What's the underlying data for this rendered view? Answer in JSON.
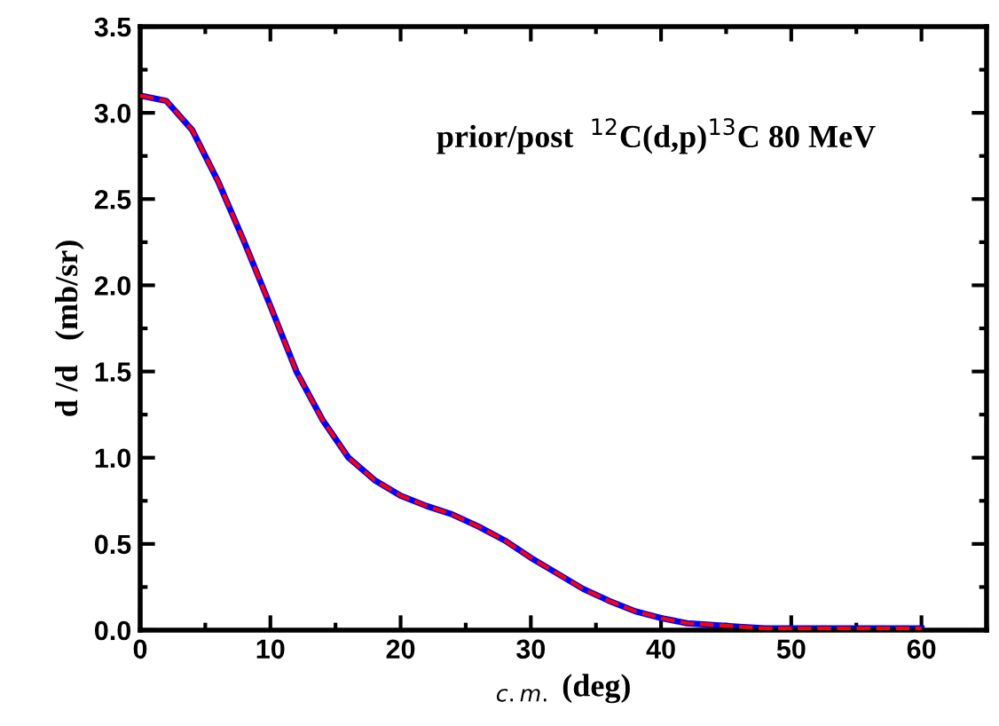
{
  "chart_data": {
    "type": "line",
    "xlabel": "$_{c.m.}$ (deg)",
    "ylabel": "d /d   (mb/sr)",
    "annotations": [
      "prior/post  $^{12}$C(d,p)$^{13}$C 80 MeV"
    ],
    "xlim": [
      0,
      65
    ],
    "ylim": [
      0,
      3.5
    ],
    "xticks": [
      0,
      10,
      20,
      30,
      40,
      50,
      60
    ],
    "yticks": [
      {
        "value": 0,
        "label": "0.0"
      },
      0.5,
      {
        "value": 1,
        "label": "1.0"
      },
      1.5,
      {
        "value": 2,
        "label": "2.0"
      },
      2.5,
      {
        "value": 3,
        "label": "3.0"
      },
      3.5
    ],
    "grid": false,
    "legend": false,
    "x": [
      0,
      2,
      4,
      6,
      8,
      10,
      12,
      14,
      16,
      18,
      20,
      22,
      24,
      26,
      28,
      30,
      32,
      34,
      36,
      38,
      40,
      42,
      44,
      46,
      48,
      50,
      55,
      60
    ],
    "series": [
      {
        "color": "#ff0000",
        "line_style": "dashed",
        "values": [
          3.1,
          3.07,
          2.9,
          2.6,
          2.25,
          1.88,
          1.5,
          1.22,
          1.0,
          0.87,
          0.78,
          0.72,
          0.67,
          0.6,
          0.52,
          0.42,
          0.33,
          0.24,
          0.17,
          0.11,
          0.07,
          0.04,
          0.03,
          0.02,
          0.01,
          0.01,
          0.01,
          0.01
        ]
      },
      {
        "color": "#0000ff",
        "line_style": "solid",
        "values": [
          3.1,
          3.07,
          2.9,
          2.6,
          2.25,
          1.88,
          1.5,
          1.22,
          1.0,
          0.87,
          0.78,
          0.72,
          0.67,
          0.6,
          0.52,
          0.42,
          0.33,
          0.24,
          0.17,
          0.11,
          0.07,
          0.04,
          0.03,
          0.02,
          0.01,
          0.01,
          0.01,
          0.01
        ]
      }
    ]
  }
}
